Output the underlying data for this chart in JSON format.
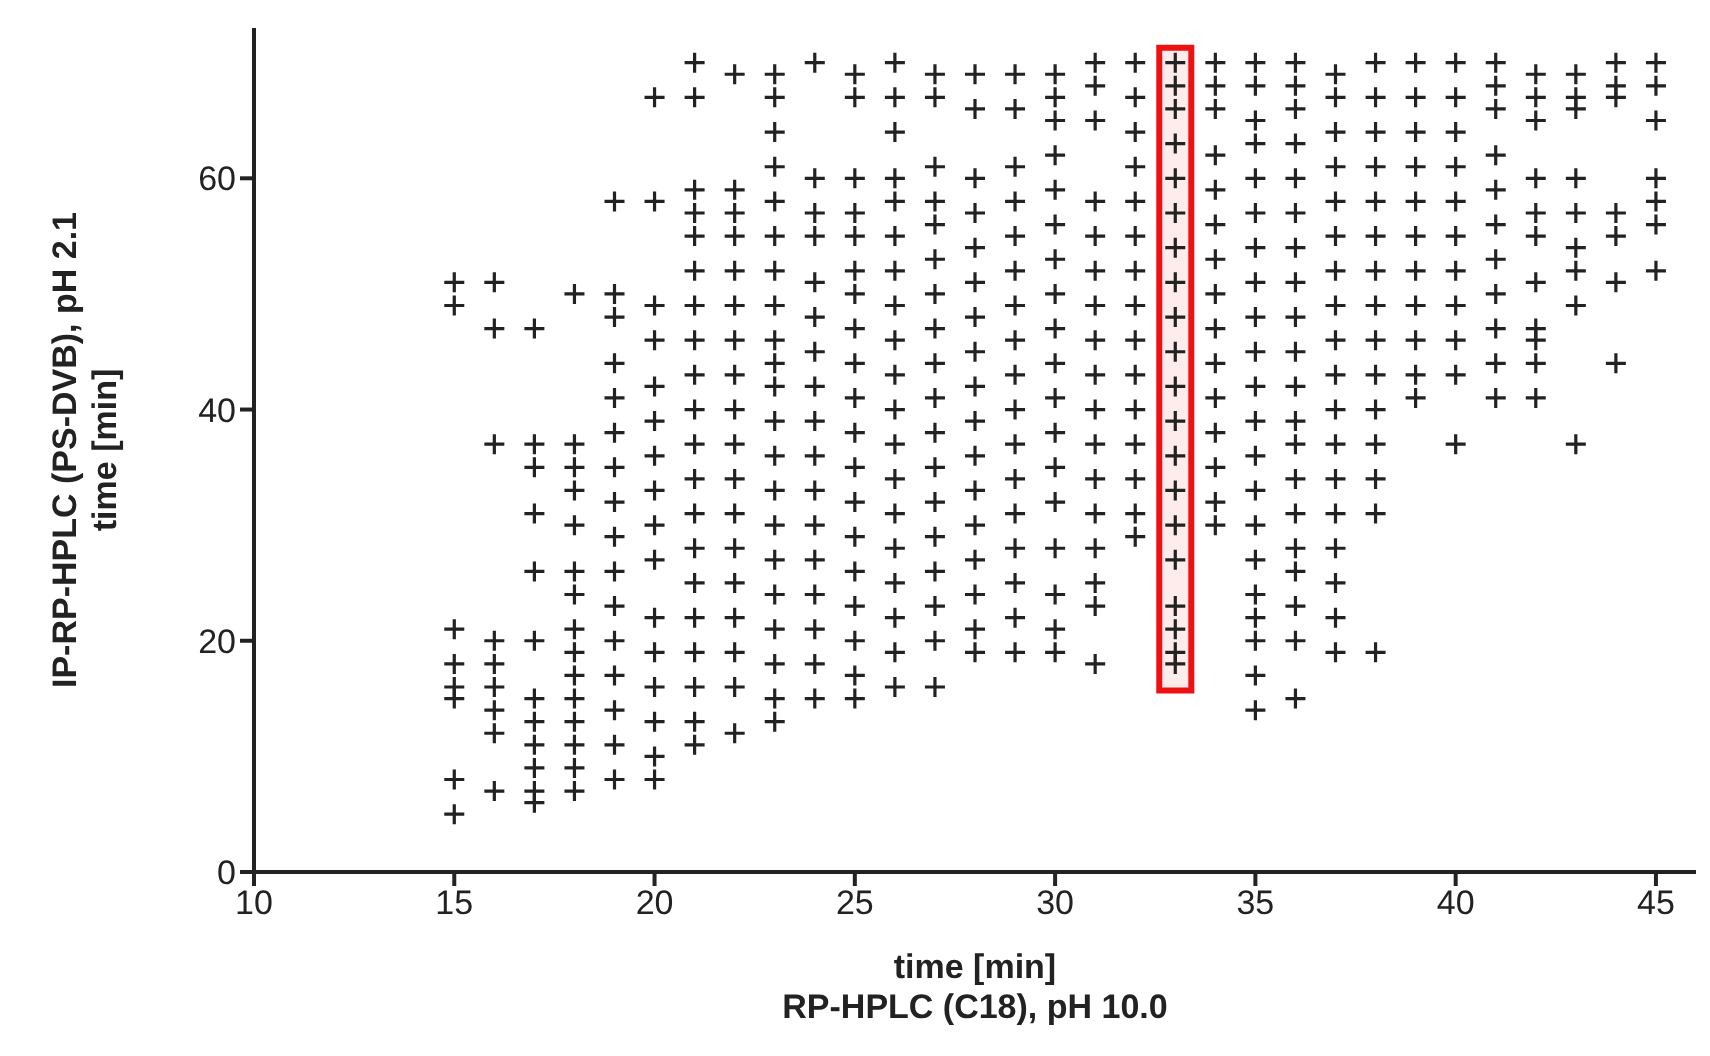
{
  "chart_data": {
    "type": "scatter",
    "xlabel": "time [min]\nRP-HPLC (C18), pH 10.0",
    "ylabel": "IP-RP-HPLC (PS-DVB), pH 2.1\ntime [min]",
    "xlim": [
      10,
      46
    ],
    "xticks": [
      10,
      15,
      20,
      25,
      30,
      35,
      40,
      45
    ],
    "ylim": [
      0,
      73
    ],
    "yticks": [
      0,
      20,
      40,
      60
    ],
    "marker": "cross",
    "bands": [
      {
        "axis": "x",
        "from": 32.6,
        "to": 33.4,
        "color": "#ee1111"
      }
    ],
    "series": [
      {
        "color": "#222222",
        "x": [
          15,
          15,
          15,
          15,
          15,
          15,
          15,
          15,
          16,
          16,
          16,
          16,
          16,
          16,
          16,
          16,
          16,
          17,
          17,
          17,
          17,
          17,
          17,
          17,
          17,
          17,
          17,
          17,
          17,
          18,
          18,
          18,
          18,
          18,
          18,
          18,
          18,
          18,
          18,
          18,
          18,
          18,
          18,
          18,
          19,
          19,
          19,
          19,
          19,
          19,
          19,
          19,
          19,
          19,
          19,
          19,
          19,
          19,
          19,
          19,
          20,
          20,
          20,
          20,
          20,
          20,
          20,
          20,
          20,
          20,
          20,
          20,
          20,
          20,
          20,
          20,
          21,
          21,
          21,
          21,
          21,
          21,
          21,
          21,
          21,
          21,
          21,
          21,
          21,
          21,
          21,
          21,
          21,
          21,
          21,
          21,
          22,
          22,
          22,
          22,
          22,
          22,
          22,
          22,
          22,
          22,
          22,
          22,
          22,
          22,
          22,
          22,
          22,
          22,
          23,
          23,
          23,
          23,
          23,
          23,
          23,
          23,
          23,
          23,
          23,
          23,
          23,
          23,
          23,
          23,
          23,
          23,
          23,
          23,
          23,
          24,
          24,
          24,
          24,
          24,
          24,
          24,
          24,
          24,
          24,
          24,
          24,
          24,
          24,
          24,
          24,
          24,
          25,
          25,
          25,
          25,
          25,
          25,
          25,
          25,
          25,
          25,
          25,
          25,
          25,
          25,
          25,
          25,
          25,
          25,
          25,
          26,
          26,
          26,
          26,
          26,
          26,
          26,
          26,
          26,
          26,
          26,
          26,
          26,
          26,
          26,
          26,
          26,
          26,
          26,
          27,
          27,
          27,
          27,
          27,
          27,
          27,
          27,
          27,
          27,
          27,
          27,
          27,
          27,
          27,
          27,
          27,
          27,
          28,
          28,
          28,
          28,
          28,
          28,
          28,
          28,
          28,
          28,
          28,
          28,
          28,
          28,
          28,
          28,
          28,
          29,
          29,
          29,
          29,
          29,
          29,
          29,
          29,
          29,
          29,
          29,
          29,
          29,
          29,
          29,
          29,
          29,
          30,
          30,
          30,
          30,
          30,
          30,
          30,
          30,
          30,
          30,
          30,
          30,
          30,
          30,
          30,
          30,
          30,
          30,
          31,
          31,
          31,
          31,
          31,
          31,
          31,
          31,
          31,
          31,
          31,
          31,
          31,
          31,
          31,
          31,
          31,
          32,
          32,
          32,
          32,
          32,
          32,
          32,
          32,
          32,
          32,
          32,
          32,
          32,
          32,
          32,
          33,
          33,
          33,
          33,
          33,
          33,
          33,
          33,
          33,
          33,
          33,
          33,
          33,
          33,
          33,
          33,
          33,
          33,
          33,
          33,
          34,
          34,
          34,
          34,
          34,
          34,
          34,
          34,
          34,
          34,
          34,
          34,
          34,
          34,
          34,
          35,
          35,
          35,
          35,
          35,
          35,
          35,
          35,
          35,
          35,
          35,
          35,
          35,
          35,
          35,
          35,
          35,
          35,
          35,
          35,
          35,
          36,
          36,
          36,
          36,
          36,
          36,
          36,
          36,
          36,
          36,
          36,
          36,
          36,
          36,
          36,
          36,
          36,
          36,
          36,
          36,
          37,
          37,
          37,
          37,
          37,
          37,
          37,
          37,
          37,
          37,
          37,
          37,
          37,
          37,
          37,
          37,
          37,
          37,
          38,
          38,
          38,
          38,
          38,
          38,
          38,
          38,
          38,
          38,
          38,
          38,
          38,
          38,
          38,
          39,
          39,
          39,
          39,
          39,
          39,
          39,
          39,
          39,
          39,
          39,
          40,
          40,
          40,
          40,
          40,
          40,
          40,
          40,
          40,
          40,
          40,
          41,
          41,
          41,
          41,
          41,
          41,
          41,
          41,
          41,
          41,
          41,
          42,
          42,
          42,
          42,
          42,
          42,
          42,
          42,
          42,
          42,
          42,
          43,
          43,
          43,
          43,
          43,
          43,
          43,
          43,
          43,
          44,
          44,
          44,
          44,
          44,
          44,
          44,
          45,
          45,
          45,
          45,
          45,
          45,
          45
        ],
        "values": [
          51,
          49,
          21,
          18,
          16,
          15,
          8,
          5,
          51,
          47,
          37,
          20,
          18,
          16,
          14,
          12,
          7,
          47,
          37,
          35,
          31,
          26,
          20,
          15,
          13,
          11,
          9,
          7,
          6,
          50,
          37,
          35,
          33,
          30,
          26,
          24,
          21,
          19,
          17,
          15,
          13,
          11,
          9,
          7,
          58,
          50,
          48,
          44,
          41,
          38,
          35,
          32,
          29,
          26,
          23,
          20,
          17,
          14,
          11,
          8,
          67,
          58,
          49,
          46,
          42,
          39,
          36,
          33,
          30,
          27,
          22,
          19,
          16,
          13,
          10,
          8,
          70,
          67,
          59,
          57,
          55,
          52,
          49,
          46,
          43,
          40,
          37,
          34,
          31,
          28,
          25,
          22,
          19,
          16,
          13,
          11,
          69,
          59,
          57,
          55,
          52,
          49,
          46,
          43,
          40,
          37,
          34,
          31,
          28,
          25,
          22,
          19,
          16,
          12,
          69,
          67,
          64,
          61,
          58,
          55,
          52,
          49,
          46,
          44,
          42,
          39,
          36,
          33,
          30,
          27,
          24,
          21,
          18,
          15,
          13,
          70,
          60,
          57,
          55,
          51,
          48,
          45,
          42,
          39,
          36,
          33,
          30,
          27,
          24,
          21,
          18,
          15,
          69,
          67,
          60,
          57,
          55,
          52,
          50,
          47,
          44,
          41,
          38,
          35,
          32,
          29,
          26,
          23,
          20,
          17,
          15,
          70,
          67,
          64,
          60,
          58,
          55,
          52,
          49,
          46,
          43,
          40,
          37,
          34,
          31,
          28,
          25,
          22,
          19,
          16,
          69,
          67,
          61,
          58,
          56,
          53,
          50,
          47,
          44,
          41,
          38,
          35,
          32,
          29,
          26,
          23,
          20,
          16,
          69,
          66,
          60,
          57,
          54,
          51,
          48,
          45,
          42,
          39,
          36,
          33,
          30,
          27,
          24,
          21,
          19,
          69,
          66,
          61,
          58,
          55,
          52,
          49,
          46,
          43,
          40,
          37,
          34,
          31,
          28,
          25,
          22,
          19,
          69,
          67,
          65,
          62,
          59,
          56,
          53,
          50,
          47,
          44,
          41,
          38,
          35,
          32,
          28,
          24,
          21,
          19,
          70,
          68,
          65,
          58,
          55,
          52,
          49,
          46,
          43,
          40,
          37,
          34,
          31,
          28,
          25,
          23,
          18,
          70,
          67,
          64,
          61,
          58,
          55,
          52,
          49,
          46,
          43,
          40,
          37,
          34,
          31,
          29,
          70,
          68,
          66,
          63,
          60,
          57,
          54,
          51,
          48,
          45,
          42,
          39,
          36,
          33,
          30,
          27,
          23,
          21,
          19,
          18,
          70,
          68,
          66,
          62,
          59,
          56,
          53,
          50,
          47,
          44,
          41,
          38,
          35,
          32,
          30,
          70,
          68,
          65,
          63,
          60,
          57,
          54,
          51,
          48,
          45,
          42,
          39,
          36,
          33,
          30,
          27,
          24,
          22,
          20,
          17,
          14,
          70,
          68,
          66,
          63,
          60,
          57,
          54,
          51,
          48,
          45,
          42,
          39,
          37,
          34,
          31,
          28,
          26,
          23,
          20,
          15,
          69,
          67,
          64,
          61,
          58,
          55,
          52,
          49,
          46,
          43,
          40,
          37,
          34,
          31,
          28,
          25,
          22,
          19,
          70,
          67,
          64,
          61,
          58,
          55,
          52,
          49,
          46,
          43,
          40,
          37,
          34,
          31,
          19,
          70,
          67,
          64,
          61,
          58,
          55,
          52,
          49,
          46,
          43,
          41,
          70,
          67,
          64,
          61,
          58,
          55,
          52,
          49,
          46,
          43,
          37,
          70,
          68,
          66,
          62,
          59,
          56,
          53,
          50,
          47,
          44,
          41,
          69,
          67,
          65,
          60,
          57,
          55,
          51,
          47,
          46,
          44,
          41,
          69,
          67,
          66,
          60,
          57,
          54,
          52,
          49,
          37,
          70,
          68,
          67,
          57,
          55,
          51,
          44,
          70,
          68,
          65,
          60,
          58,
          56,
          52
        ]
      }
    ]
  }
}
